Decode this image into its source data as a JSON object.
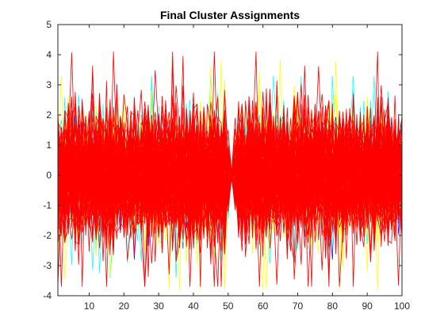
{
  "chart_data": {
    "type": "line",
    "title": "Final Cluster Assignments",
    "xlabel": "",
    "ylabel": "",
    "xlim": [
      1,
      100
    ],
    "ylim": [
      -4,
      5
    ],
    "x_ticks": [
      10,
      20,
      30,
      40,
      50,
      60,
      70,
      80,
      90,
      100
    ],
    "y_ticks": [
      -4,
      -3,
      -2,
      -1,
      0,
      1,
      2,
      3,
      4,
      5
    ],
    "grid": false,
    "legend": "none",
    "x": [
      1,
      100
    ],
    "series": [
      {
        "color": "#0000ff",
        "y_range": [
          -2.8,
          2.0
        ],
        "typical_range": [
          -1.0,
          1.0
        ],
        "dip_at_x": 51
      },
      {
        "color": "#00ffff",
        "y_range": [
          -3.4,
          3.3
        ],
        "typical_range": [
          -1.0,
          1.0
        ],
        "dip_at_x": 51
      },
      {
        "color": "#ffff00",
        "y_range": [
          -3.8,
          3.8
        ],
        "typical_range": [
          -1.0,
          1.0
        ],
        "dip_at_x": 51
      },
      {
        "color": "#ff0000",
        "y_range": [
          -3.7,
          4.1
        ],
        "typical_range": [
          -1.0,
          1.0
        ],
        "dip_at_x": 51
      }
    ]
  }
}
